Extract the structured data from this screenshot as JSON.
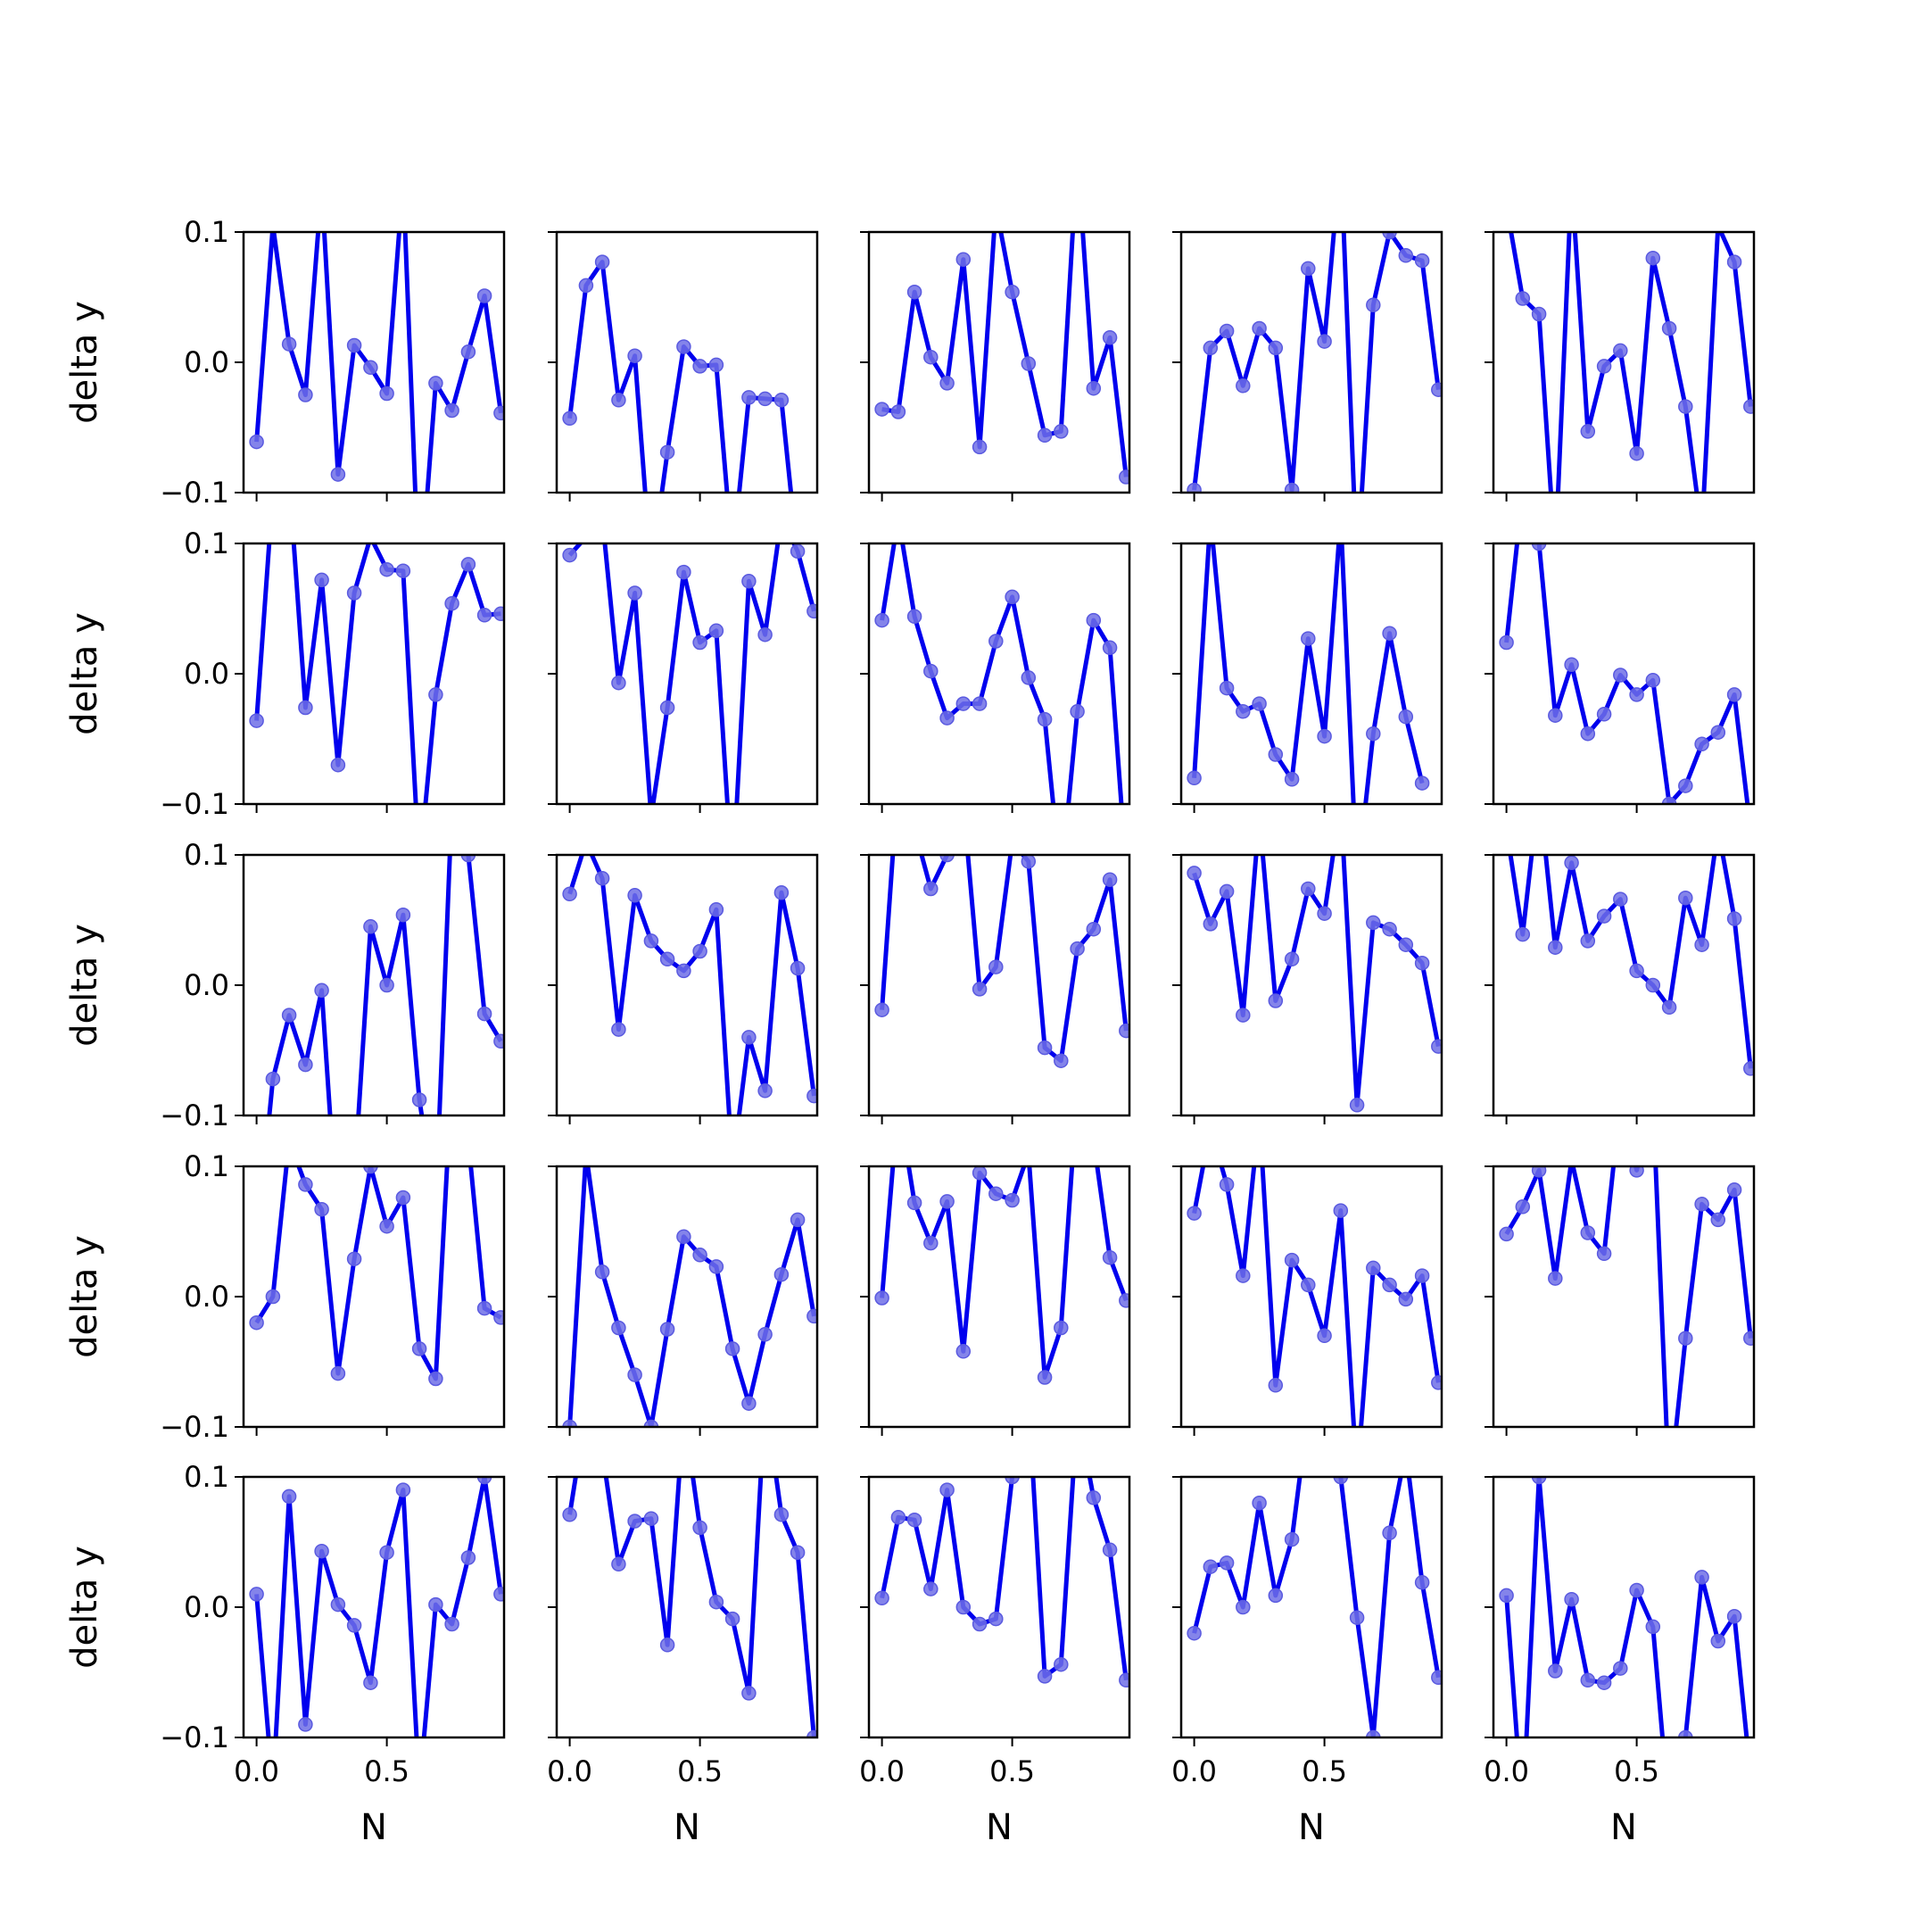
{
  "figure": {
    "rows": 5,
    "cols": 5
  },
  "labels": {
    "ylabel": "delta y",
    "xlabel": "N",
    "yticks": [
      "0.1",
      "0.0",
      "−0.1"
    ],
    "xticks": [
      "0.0",
      "0.5"
    ]
  },
  "colors": {
    "line": "#0000ee",
    "marker_fill": "#6f6fe6",
    "marker_edge": "#5a5ae0",
    "axes": "#000000"
  },
  "chart_data": {
    "type": "line",
    "layout": "5x5 grid of subplots (shared axes)",
    "x": [
      0.0,
      0.0625,
      0.125,
      0.1875,
      0.25,
      0.3125,
      0.375,
      0.4375,
      0.5,
      0.5625,
      0.625,
      0.6875,
      0.75,
      0.8125,
      0.875,
      0.9375
    ],
    "xlim": [
      -0.05,
      0.95
    ],
    "ylim": [
      -0.1,
      0.1
    ],
    "xticks": [
      0.0,
      0.5
    ],
    "yticks": [
      0.1,
      0.0,
      -0.1
    ],
    "xlabel": "N",
    "ylabel": "delta y",
    "grid": false,
    "panels": [
      {
        "row": 0,
        "col": 0,
        "y": [
          -0.061,
          0.105,
          0.014,
          -0.025,
          0.135,
          -0.086,
          0.013,
          -0.004,
          -0.024,
          0.14,
          -0.18,
          -0.016,
          -0.037,
          0.008,
          0.051,
          -0.039
        ]
      },
      {
        "row": 0,
        "col": 1,
        "y": [
          -0.043,
          0.059,
          0.077,
          -0.029,
          0.005,
          -0.16,
          -0.069,
          0.012,
          -0.003,
          -0.002,
          -0.15,
          -0.027,
          -0.028,
          -0.029,
          -0.15,
          null
        ]
      },
      {
        "row": 0,
        "col": 2,
        "y": [
          -0.036,
          -0.038,
          0.054,
          0.004,
          -0.016,
          0.079,
          -0.065,
          0.12,
          0.054,
          -0.001,
          -0.056,
          -0.053,
          0.16,
          -0.02,
          0.019,
          -0.088
        ]
      },
      {
        "row": 0,
        "col": 3,
        "y": [
          -0.098,
          0.011,
          0.024,
          -0.018,
          0.026,
          0.011,
          -0.098,
          0.072,
          0.016,
          0.16,
          -0.16,
          0.044,
          0.1,
          0.082,
          0.078,
          -0.021
        ]
      },
      {
        "row": 0,
        "col": 4,
        "y": [
          0.12,
          0.049,
          0.037,
          -0.15,
          0.14,
          -0.053,
          -0.003,
          0.009,
          -0.07,
          0.08,
          0.026,
          -0.034,
          -0.13,
          0.105,
          0.077,
          -0.034
        ]
      },
      {
        "row": 1,
        "col": 0,
        "y": [
          -0.036,
          0.14,
          0.15,
          -0.026,
          0.072,
          -0.07,
          0.062,
          0.105,
          0.08,
          0.079,
          -0.15,
          -0.016,
          0.054,
          0.084,
          0.045,
          0.046
        ]
      },
      {
        "row": 1,
        "col": 1,
        "y": [
          0.091,
          0.105,
          0.12,
          -0.007,
          0.062,
          -0.11,
          -0.026,
          0.078,
          0.024,
          0.033,
          -0.16,
          0.071,
          0.03,
          0.12,
          0.094,
          0.048
        ]
      },
      {
        "row": 1,
        "col": 2,
        "y": [
          0.041,
          0.12,
          0.044,
          0.002,
          -0.034,
          -0.023,
          -0.023,
          0.025,
          0.059,
          -0.003,
          -0.035,
          -0.16,
          -0.029,
          0.041,
          0.02,
          -0.15
        ]
      },
      {
        "row": 1,
        "col": 3,
        "y": [
          -0.08,
          0.12,
          -0.011,
          -0.029,
          -0.023,
          -0.062,
          -0.081,
          0.027,
          -0.048,
          0.12,
          -0.16,
          -0.046,
          0.031,
          -0.033,
          -0.084,
          null
        ]
      },
      {
        "row": 1,
        "col": 4,
        "y": [
          0.024,
          0.14,
          0.1,
          -0.032,
          0.007,
          -0.046,
          -0.031,
          -0.001,
          -0.016,
          -0.005,
          -0.1,
          -0.086,
          -0.054,
          -0.045,
          -0.016,
          -0.12
        ]
      },
      {
        "row": 2,
        "col": 0,
        "y": [
          -0.2,
          -0.072,
          -0.023,
          -0.061,
          -0.004,
          -0.19,
          -0.15,
          0.045,
          0.0,
          0.054,
          -0.088,
          -0.17,
          0.14,
          0.1,
          -0.022,
          -0.043
        ]
      },
      {
        "row": 2,
        "col": 1,
        "y": [
          0.07,
          0.11,
          0.082,
          -0.034,
          0.069,
          0.034,
          0.02,
          0.011,
          0.026,
          0.058,
          -0.14,
          -0.04,
          -0.081,
          0.071,
          0.013,
          -0.085
        ]
      },
      {
        "row": 2,
        "col": 2,
        "y": [
          -0.019,
          0.16,
          0.12,
          0.074,
          0.1,
          0.14,
          -0.003,
          0.014,
          0.11,
          0.095,
          -0.048,
          -0.058,
          0.028,
          0.043,
          0.081,
          -0.035
        ]
      },
      {
        "row": 2,
        "col": 3,
        "y": [
          0.086,
          0.047,
          0.072,
          -0.023,
          0.13,
          -0.012,
          0.02,
          0.074,
          0.055,
          0.14,
          -0.092,
          0.048,
          0.043,
          0.031,
          0.017,
          -0.047
        ]
      },
      {
        "row": 2,
        "col": 4,
        "y": [
          0.12,
          0.039,
          0.15,
          0.029,
          0.094,
          0.034,
          0.053,
          0.066,
          0.011,
          0.0,
          -0.017,
          0.067,
          0.031,
          0.12,
          0.051,
          -0.064
        ]
      },
      {
        "row": 3,
        "col": 0,
        "y": [
          -0.02,
          0.0,
          0.12,
          0.086,
          0.067,
          -0.059,
          0.029,
          0.1,
          0.054,
          0.076,
          -0.04,
          -0.063,
          0.17,
          0.12,
          -0.009,
          -0.016
        ]
      },
      {
        "row": 3,
        "col": 1,
        "y": [
          -0.1,
          0.11,
          0.019,
          -0.024,
          -0.06,
          -0.1,
          -0.025,
          0.046,
          0.032,
          0.023,
          -0.04,
          -0.082,
          -0.029,
          0.017,
          0.059,
          -0.015
        ]
      },
      {
        "row": 3,
        "col": 2,
        "y": [
          -0.001,
          0.15,
          0.072,
          0.041,
          0.073,
          -0.042,
          0.095,
          0.079,
          0.074,
          0.11,
          -0.062,
          -0.024,
          0.16,
          0.12,
          0.03,
          -0.003
        ]
      },
      {
        "row": 3,
        "col": 3,
        "y": [
          0.064,
          0.13,
          0.086,
          0.016,
          0.14,
          -0.068,
          0.028,
          0.009,
          -0.03,
          0.066,
          -0.14,
          0.022,
          0.009,
          -0.002,
          0.016,
          -0.066
        ]
      },
      {
        "row": 3,
        "col": 4,
        "y": [
          0.048,
          0.069,
          0.097,
          0.014,
          0.105,
          0.049,
          0.033,
          0.15,
          0.097,
          0.15,
          -0.15,
          -0.032,
          0.071,
          0.059,
          0.082,
          -0.032
        ]
      },
      {
        "row": 4,
        "col": 0,
        "y": [
          0.01,
          -0.14,
          0.085,
          -0.09,
          0.043,
          0.002,
          -0.014,
          -0.058,
          0.042,
          0.09,
          -0.14,
          0.002,
          -0.013,
          0.038,
          0.1,
          0.01
        ]
      },
      {
        "row": 4,
        "col": 1,
        "y": [
          0.071,
          0.15,
          0.12,
          0.033,
          0.066,
          0.068,
          -0.029,
          0.15,
          0.061,
          0.004,
          -0.009,
          -0.066,
          0.16,
          0.071,
          0.042,
          -0.1
        ]
      },
      {
        "row": 4,
        "col": 2,
        "y": [
          0.007,
          0.069,
          0.067,
          0.014,
          0.09,
          0.0,
          -0.013,
          -0.009,
          0.1,
          0.16,
          -0.053,
          -0.044,
          0.15,
          0.084,
          0.044,
          -0.056
        ]
      },
      {
        "row": 4,
        "col": 3,
        "y": [
          -0.02,
          0.031,
          0.034,
          0.0,
          0.08,
          0.009,
          0.052,
          0.15,
          0.15,
          0.1,
          -0.008,
          -0.1,
          0.057,
          0.12,
          0.019,
          -0.054
        ]
      },
      {
        "row": 4,
        "col": 4,
        "y": [
          0.009,
          -0.16,
          0.1,
          -0.049,
          0.006,
          -0.056,
          -0.058,
          -0.047,
          0.013,
          -0.015,
          -0.16,
          -0.1,
          0.023,
          -0.026,
          -0.007,
          -0.13
        ]
      }
    ]
  }
}
